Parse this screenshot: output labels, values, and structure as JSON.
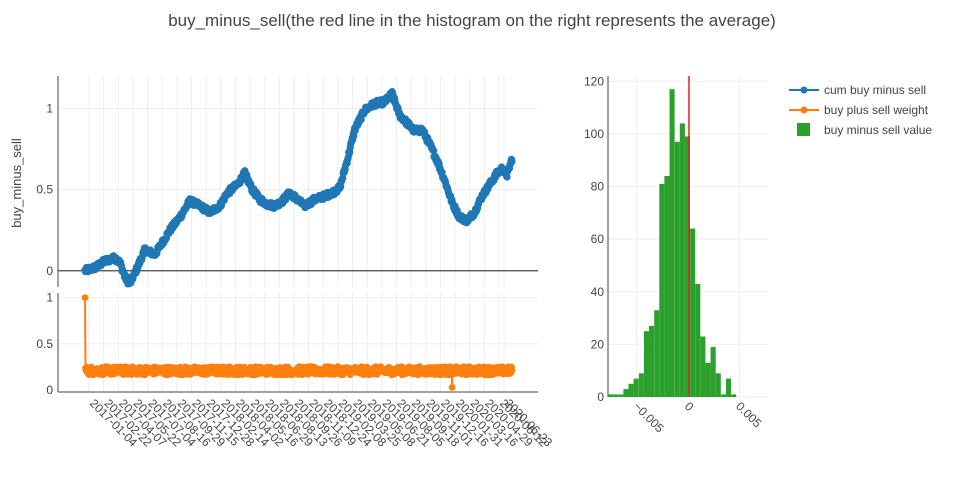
{
  "chart_data": {
    "title": "buy_minus_sell(the red line in the histogram on the right represents the average)",
    "legend": {
      "placement": "top-right",
      "entries": [
        {
          "name": "cum buy minus sell",
          "color": "#1f77b4",
          "kind": "line-marker"
        },
        {
          "name": "buy plus sell weight",
          "color": "#ff7f0e",
          "kind": "line-marker"
        },
        {
          "name": "buy minus sell value",
          "color": "#2ca02c",
          "kind": "bar"
        }
      ]
    },
    "panels": [
      {
        "id": "cum",
        "type": "scatter",
        "ylabel": "buy_minus_sell",
        "ylim": [
          -0.1,
          1.2
        ],
        "yticks": [
          "0",
          "0.5",
          "1"
        ],
        "ytick_values": [
          0,
          0.5,
          1
        ],
        "xlim": [
          0,
          1200
        ],
        "grid": true,
        "color": "#1f77b4",
        "series_name": "cum buy minus sell",
        "anchors": [
          [
            0,
            0
          ],
          [
            20,
            0.02
          ],
          [
            40,
            0.06
          ],
          [
            60,
            0.08
          ],
          [
            70,
            0.05
          ],
          [
            80,
            -0.04
          ],
          [
            90,
            -0.08
          ],
          [
            105,
            0.02
          ],
          [
            120,
            0.13
          ],
          [
            140,
            0.1
          ],
          [
            170,
            0.25
          ],
          [
            190,
            0.33
          ],
          [
            210,
            0.43
          ],
          [
            230,
            0.4
          ],
          [
            250,
            0.36
          ],
          [
            270,
            0.4
          ],
          [
            285,
            0.48
          ],
          [
            305,
            0.53
          ],
          [
            320,
            0.6
          ],
          [
            335,
            0.5
          ],
          [
            350,
            0.44
          ],
          [
            365,
            0.41
          ],
          [
            380,
            0.4
          ],
          [
            395,
            0.43
          ],
          [
            410,
            0.48
          ],
          [
            425,
            0.44
          ],
          [
            440,
            0.4
          ],
          [
            460,
            0.44
          ],
          [
            480,
            0.46
          ],
          [
            495,
            0.48
          ],
          [
            510,
            0.51
          ],
          [
            525,
            0.68
          ],
          [
            540,
            0.87
          ],
          [
            560,
            0.99
          ],
          [
            580,
            1.03
          ],
          [
            600,
            1.04
          ],
          [
            615,
            1.09
          ],
          [
            630,
            0.96
          ],
          [
            645,
            0.91
          ],
          [
            660,
            0.86
          ],
          [
            675,
            0.87
          ],
          [
            690,
            0.78
          ],
          [
            705,
            0.68
          ],
          [
            720,
            0.56
          ],
          [
            735,
            0.42
          ],
          [
            750,
            0.33
          ],
          [
            765,
            0.31
          ],
          [
            780,
            0.36
          ],
          [
            795,
            0.46
          ],
          [
            810,
            0.53
          ],
          [
            825,
            0.6
          ],
          [
            835,
            0.63
          ],
          [
            845,
            0.59
          ],
          [
            855,
            0.69
          ]
        ],
        "xmax": 855
      },
      {
        "id": "weight",
        "type": "scatter",
        "ylim": [
          -0.02,
          1.05
        ],
        "yticks": [
          "0",
          "0.5",
          "1"
        ],
        "ytick_values": [
          0,
          0.5,
          1
        ],
        "xlim": [
          0,
          1200
        ],
        "grid": true,
        "color": "#ff7f0e",
        "series_name": "buy plus sell weight",
        "base_value": 0.21,
        "spike": {
          "x": 0,
          "y": 1.0
        },
        "low_outlier": {
          "x": 735,
          "y": 0.03
        }
      },
      {
        "id": "hist",
        "type": "bar",
        "series_name": "buy minus sell value",
        "color": "#2ca02c",
        "mean_line_color": "#d62728",
        "mean_value": 0.0001,
        "xlim": [
          -0.0078,
          0.0078
        ],
        "ylim": [
          0,
          122
        ],
        "yticks": [
          "0",
          "20",
          "40",
          "60",
          "80",
          "100",
          "120"
        ],
        "ytick_values": [
          0,
          20,
          40,
          60,
          80,
          100,
          120
        ],
        "xticks": [
          "−0.005",
          "0",
          "0.005"
        ],
        "xtick_values": [
          -0.005,
          0,
          0.005
        ],
        "bin_width": 0.0005,
        "bin_start": -0.0078,
        "counts": [
          1,
          1,
          1,
          3,
          5,
          7,
          9,
          25,
          27,
          33,
          81,
          84,
          117,
          97,
          104,
          99,
          64,
          43,
          23,
          13,
          19,
          9,
          1,
          7,
          1
        ]
      }
    ],
    "x_tick_labels": [
      "2017-01-04",
      "2017-02-22",
      "2017-04-07",
      "2017-05-22",
      "2017-07-04",
      "2017-08-16",
      "2017-09-29",
      "2017-11-15",
      "2017-12-28",
      "2018-02-14",
      "2018-04-02",
      "2018-05-16",
      "2018-06-29",
      "2018-08-13",
      "2018-09-26",
      "2018-11-09",
      "2018-12-24",
      "2019-02-08",
      "2019-03-25",
      "2019-05-08",
      "2019-06-21",
      "2019-08-05",
      "2019-09-18",
      "2019-11-01",
      "2019-12-16",
      "2020-01-31",
      "2020-03-16",
      "2020-04-29",
      "2020-06-12"
    ],
    "x_tick_last": "2020-06-23"
  }
}
